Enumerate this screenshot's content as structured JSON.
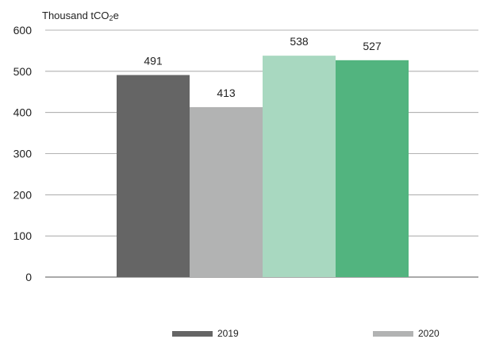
{
  "chart_data": {
    "type": "bar",
    "y_unit_prefix": "Thousand tCO",
    "y_unit_subscript": "2",
    "y_unit_suffix": "e",
    "ylim": [
      0,
      600
    ],
    "yticks": [
      0,
      100,
      200,
      300,
      400,
      500,
      600
    ],
    "grid": true,
    "legend_position": "bottom",
    "series": [
      {
        "value": 491,
        "label": "491",
        "color": "#656565"
      },
      {
        "value": 413,
        "label": "413",
        "color": "#b2b3b3"
      },
      {
        "value": 538,
        "label": "538",
        "color": "#a8d8c0"
      },
      {
        "value": 527,
        "label": "527",
        "color": "#52b47f"
      }
    ],
    "legend": [
      {
        "name": "2019",
        "color": "#656565"
      },
      {
        "name": "2020",
        "color": "#b2b3b3"
      }
    ]
  }
}
